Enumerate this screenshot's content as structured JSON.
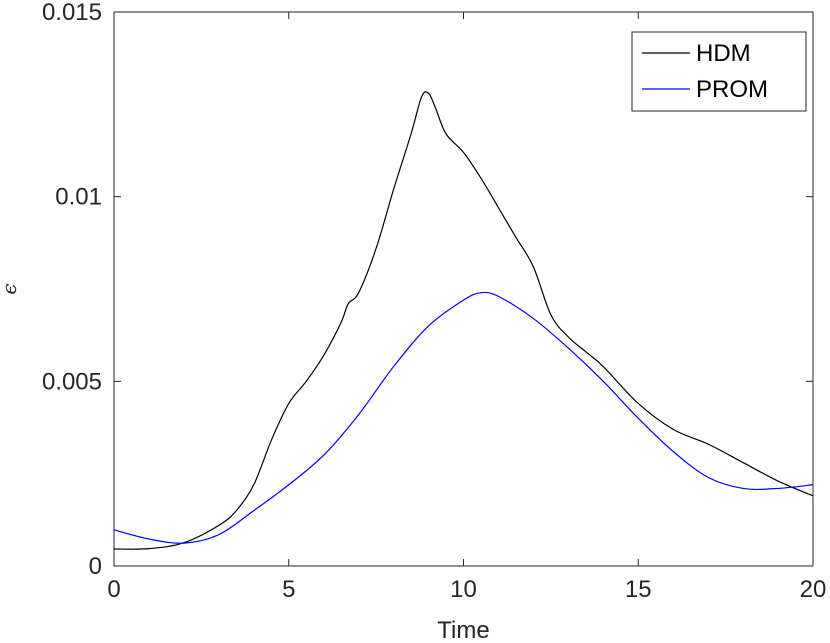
{
  "chart_data": {
    "type": "line",
    "title": "",
    "xlabel": "Time",
    "ylabel": "ϵ",
    "xlim": [
      0,
      20
    ],
    "ylim": [
      0,
      0.015
    ],
    "xticks": [
      0,
      5,
      10,
      15,
      20
    ],
    "xtick_labels": [
      "0",
      "5",
      "10",
      "15",
      "20"
    ],
    "yticks": [
      0,
      0.005,
      0.01,
      0.015
    ],
    "ytick_labels": [
      "0",
      "0.005",
      "0.01",
      "0.015"
    ],
    "grid": false,
    "legend_position": "top-right",
    "series": [
      {
        "name": "HDM",
        "color": "#000000",
        "x": [
          0,
          1,
          2,
          3,
          3.5,
          4,
          4.5,
          5,
          5.5,
          6,
          6.5,
          6.7,
          7,
          7.5,
          8,
          8.5,
          8.8,
          9,
          9.2,
          9.5,
          10,
          10.5,
          11,
          11.5,
          12,
          12.5,
          13,
          13.5,
          14,
          15,
          16,
          17,
          18,
          19,
          20
        ],
        "y": [
          0.00046,
          0.00047,
          0.00063,
          0.0011,
          0.0015,
          0.0022,
          0.0034,
          0.0044,
          0.005,
          0.0057,
          0.0066,
          0.0071,
          0.0074,
          0.0086,
          0.0102,
          0.0117,
          0.0127,
          0.0128,
          0.0124,
          0.0117,
          0.0112,
          0.0105,
          0.0097,
          0.0089,
          0.0081,
          0.0068,
          0.0062,
          0.0058,
          0.0054,
          0.0044,
          0.0037,
          0.0033,
          0.0028,
          0.0023,
          0.0019
        ]
      },
      {
        "name": "PROM",
        "color": "#0000ff",
        "x": [
          0,
          1,
          2,
          3,
          4,
          5,
          6,
          7,
          8,
          9,
          10,
          10.5,
          11,
          12,
          13,
          14,
          15,
          16,
          17,
          18,
          19,
          20
        ],
        "y": [
          0.00098,
          0.00073,
          0.00062,
          0.00085,
          0.0015,
          0.0022,
          0.003,
          0.0041,
          0.0054,
          0.0065,
          0.0072,
          0.0074,
          0.0073,
          0.0067,
          0.0059,
          0.005,
          0.004,
          0.0031,
          0.0024,
          0.0021,
          0.0021,
          0.0022
        ]
      }
    ]
  }
}
